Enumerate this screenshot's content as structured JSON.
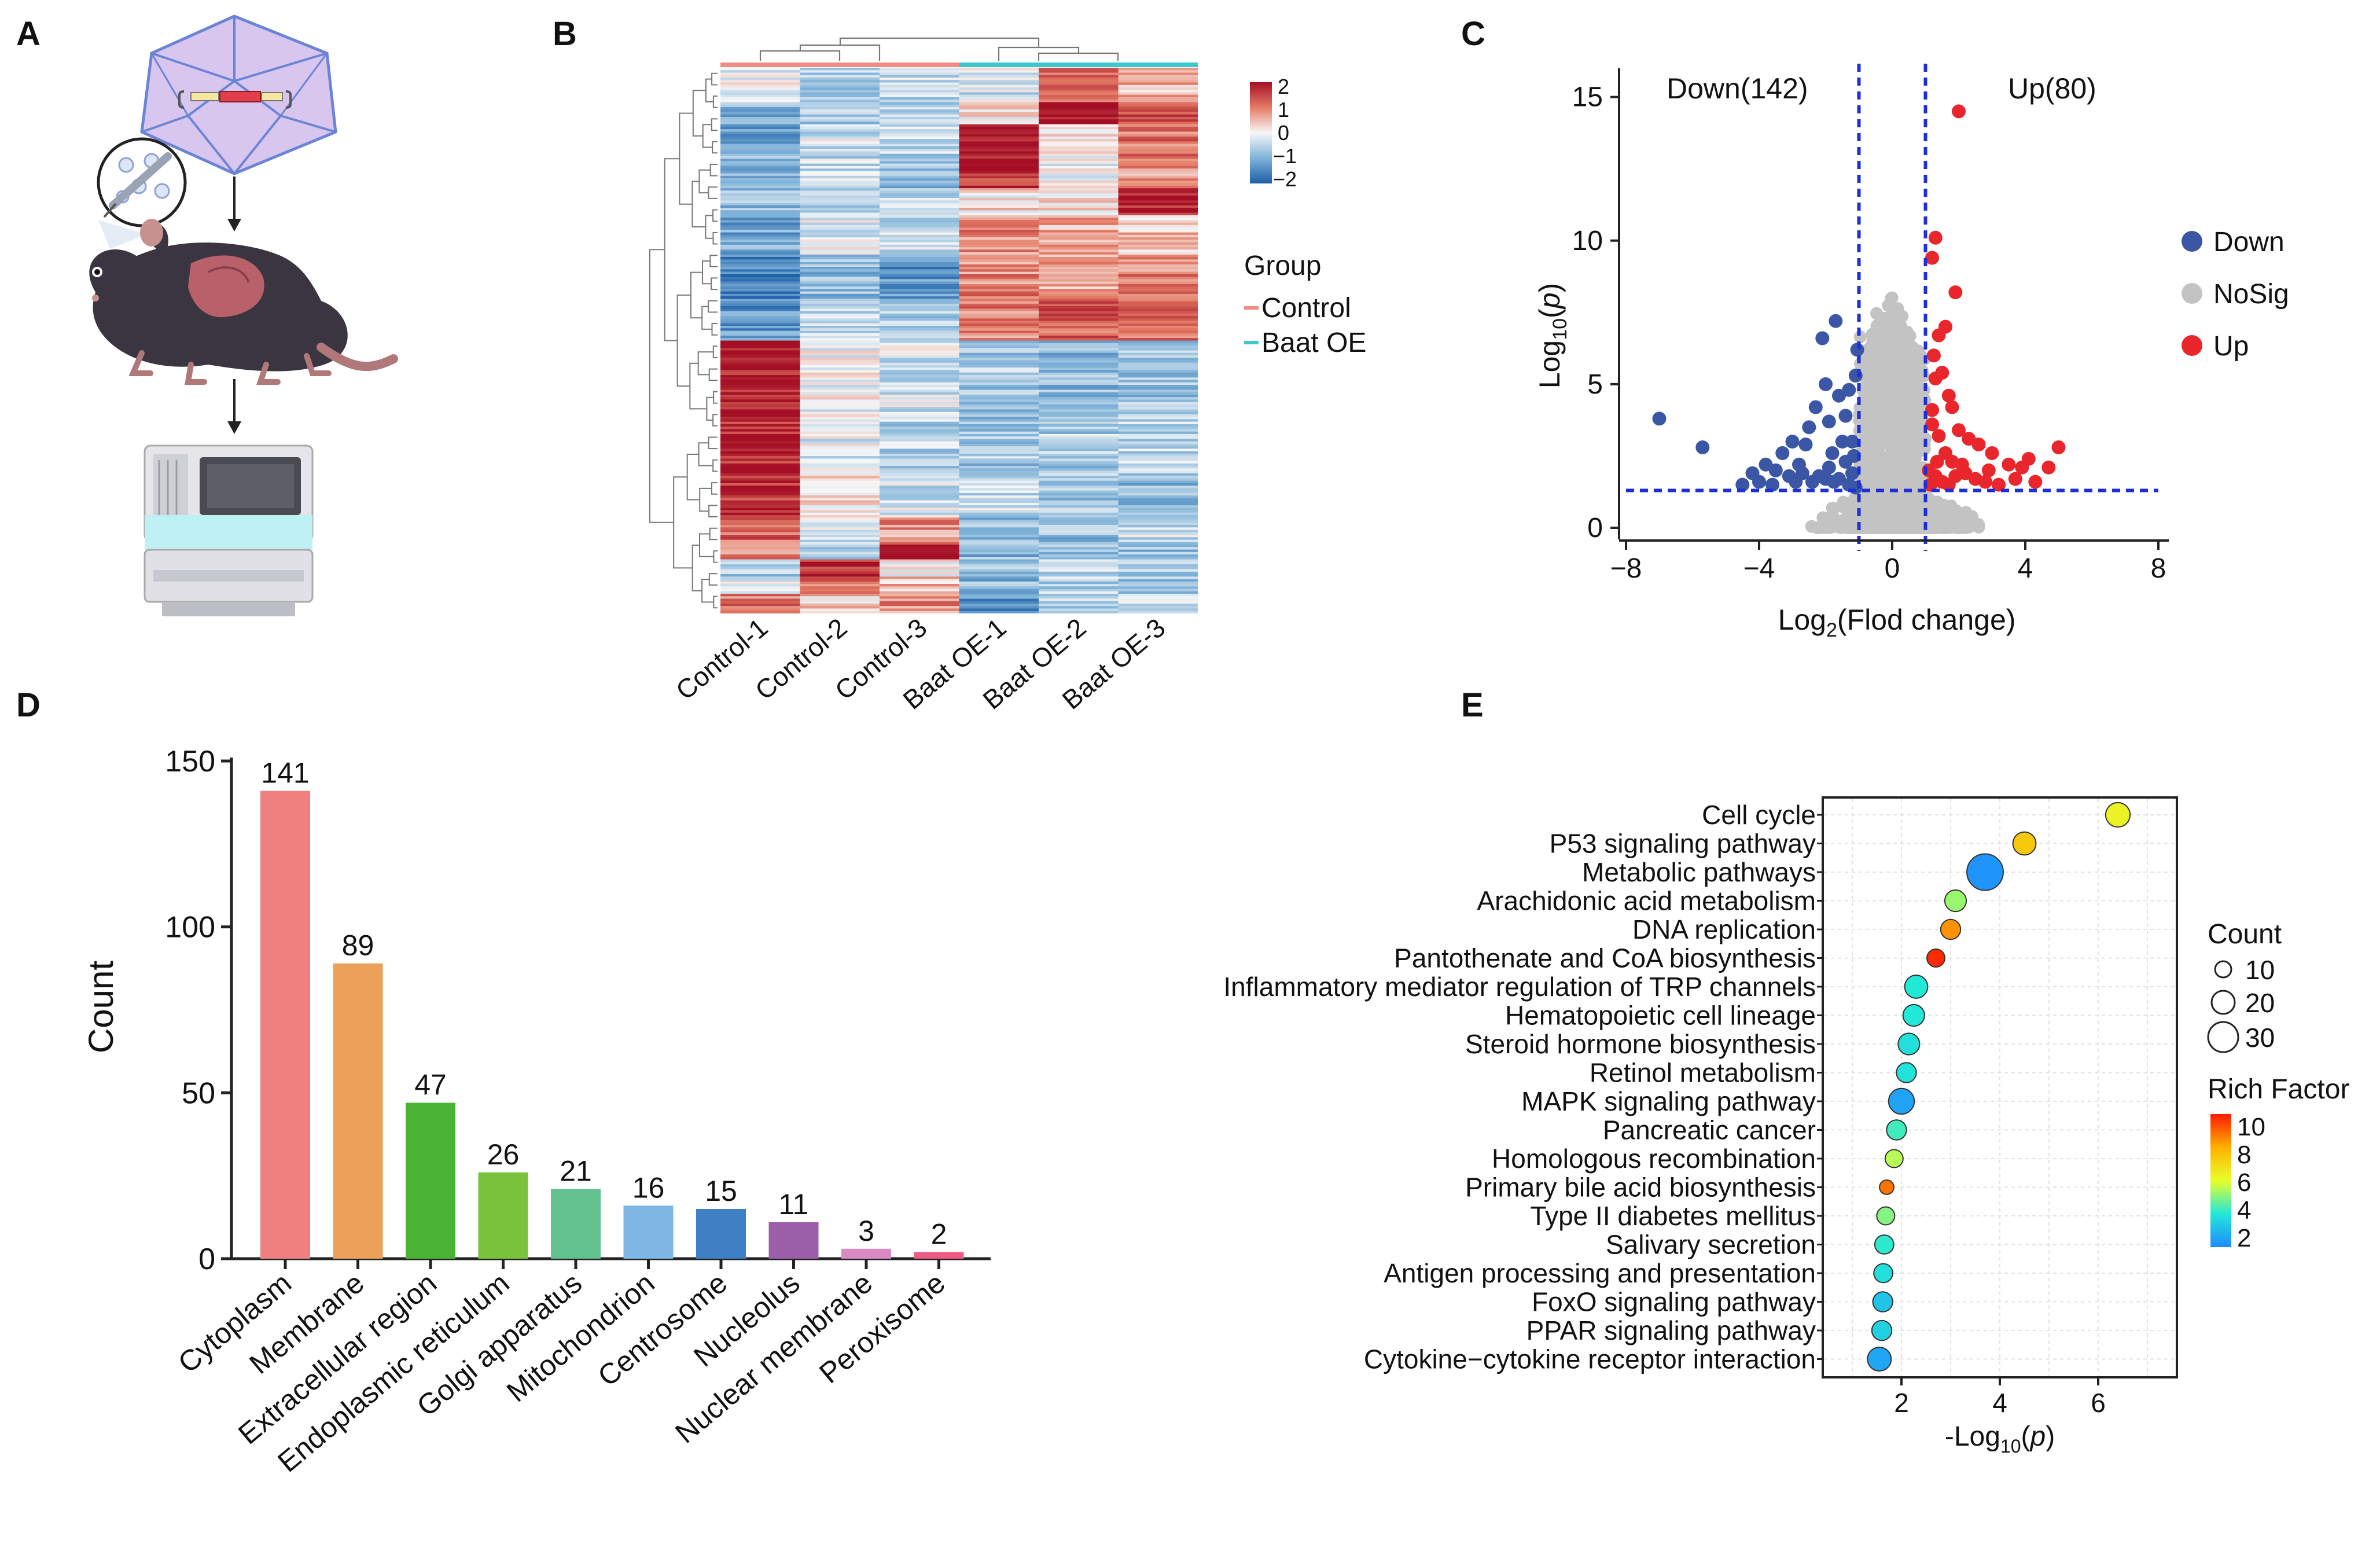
{
  "panels": {
    "A": {
      "letter": "A"
    },
    "B": {
      "letter": "B"
    },
    "C": {
      "letter": "C"
    },
    "D": {
      "letter": "D"
    },
    "E": {
      "letter": "E"
    }
  },
  "heatmap": {
    "columns": [
      "Control-1",
      "Control-2",
      "Control-3",
      "Baat OE-1",
      "Baat OE-2",
      "Baat OE-3"
    ],
    "scale_labels": [
      "2",
      "1",
      "0",
      "−1",
      "−2"
    ],
    "legend_title": "Group",
    "groups": [
      {
        "name": "Control",
        "color": "#f08c84"
      },
      {
        "name": "Baat OE",
        "color": "#3cc8cc"
      }
    ]
  },
  "chart_data": [
    {
      "panel": "C",
      "type": "scatter",
      "title": "",
      "xlabel": "Log2(Flod change)",
      "ylabel": "Log10(p)",
      "xlim": [
        -8,
        8
      ],
      "ylim": [
        0,
        16
      ],
      "xticks": [
        "−8",
        "−4",
        "0",
        "4",
        "8"
      ],
      "yticks": [
        "0",
        "5",
        "10",
        "15"
      ],
      "annotations": [
        "Down(142)",
        "Up(80)"
      ],
      "thresholds": {
        "fold_change": [
          -1,
          1
        ],
        "p": 1.3
      },
      "legend": [
        {
          "label": "Down",
          "color": "#3a56a5"
        },
        {
          "label": "NoSig",
          "color": "#c3c3c3"
        },
        {
          "label": "Up",
          "color": "#e8262b"
        }
      ],
      "series": [
        {
          "name": "Down",
          "color": "#3a56a5",
          "points": [
            [
              -7.0,
              3.8
            ],
            [
              -5.7,
              2.8
            ],
            [
              -4.5,
              1.5
            ],
            [
              -4.2,
              1.9
            ],
            [
              -3.8,
              2.2
            ],
            [
              -3.5,
              2.0
            ],
            [
              -3.3,
              2.6
            ],
            [
              -3.0,
              3.0
            ],
            [
              -2.8,
              2.2
            ],
            [
              -2.6,
              2.9
            ],
            [
              -2.5,
              3.5
            ],
            [
              -2.4,
              1.6
            ],
            [
              -2.3,
              4.2
            ],
            [
              -2.1,
              6.6
            ],
            [
              -2.0,
              5.0
            ],
            [
              -1.9,
              3.7
            ],
            [
              -1.8,
              2.6
            ],
            [
              -1.7,
              7.2
            ],
            [
              -1.6,
              4.6
            ],
            [
              -1.5,
              3.0
            ],
            [
              -1.4,
              3.9
            ],
            [
              -1.3,
              4.8
            ],
            [
              -1.2,
              3.0
            ],
            [
              -1.1,
              5.3
            ],
            [
              -1.05,
              6.2
            ],
            [
              -1.6,
              1.7
            ],
            [
              -2.2,
              1.8
            ],
            [
              -2.9,
              1.6
            ],
            [
              -3.6,
              1.5
            ],
            [
              -1.2,
              1.9
            ],
            [
              -1.9,
              2.1
            ],
            [
              -1.4,
              2.3
            ],
            [
              -2.7,
              1.9
            ],
            [
              -3.1,
              1.8
            ],
            [
              -1.15,
              2.5
            ],
            [
              -1.3,
              1.5
            ],
            [
              -4.0,
              1.6
            ],
            [
              -2.0,
              1.7
            ],
            [
              -1.75,
              1.6
            ],
            [
              -1.1,
              1.4
            ]
          ]
        },
        {
          "name": "Up",
          "color": "#e8262b",
          "points": [
            [
              2.0,
              14.5
            ],
            [
              1.3,
              10.1
            ],
            [
              1.2,
              9.4
            ],
            [
              1.9,
              8.2
            ],
            [
              1.6,
              7.0
            ],
            [
              1.4,
              6.7
            ],
            [
              1.5,
              5.4
            ],
            [
              1.3,
              5.2
            ],
            [
              1.7,
              4.6
            ],
            [
              1.8,
              4.2
            ],
            [
              2.0,
              3.4
            ],
            [
              2.3,
              3.1
            ],
            [
              2.6,
              2.9
            ],
            [
              3.0,
              2.6
            ],
            [
              3.5,
              2.2
            ],
            [
              3.9,
              2.1
            ],
            [
              4.1,
              2.4
            ],
            [
              4.7,
              2.1
            ],
            [
              5.0,
              2.8
            ],
            [
              1.2,
              3.6
            ],
            [
              1.4,
              3.2
            ],
            [
              1.6,
              2.6
            ],
            [
              1.8,
              2.3
            ],
            [
              2.2,
              1.9
            ],
            [
              2.5,
              1.7
            ],
            [
              2.8,
              1.6
            ],
            [
              3.2,
              1.5
            ],
            [
              1.3,
              1.8
            ],
            [
              1.5,
              1.6
            ],
            [
              1.1,
              2.0
            ],
            [
              1.2,
              4.1
            ],
            [
              1.25,
              6.0
            ],
            [
              1.35,
              2.3
            ],
            [
              2.1,
              2.2
            ],
            [
              1.7,
              1.5
            ],
            [
              1.15,
              1.5
            ],
            [
              3.7,
              1.7
            ],
            [
              4.3,
              1.6
            ],
            [
              2.9,
              2.0
            ],
            [
              1.9,
              1.8
            ]
          ]
        }
      ]
    },
    {
      "panel": "D",
      "type": "bar",
      "title": "",
      "xlabel": "",
      "ylabel": "Count",
      "ylim": [
        0,
        150
      ],
      "yticks": [
        "0",
        "50",
        "100",
        "150"
      ],
      "categories": [
        "Cytoplasm",
        "Membrane",
        "Extracellular region",
        "Endoplasmic reticulum",
        "Golgi apparatus",
        "Mitochondrion",
        "Centrosome",
        "Nucleolus",
        "Nuclear membrane",
        "Peroxisome"
      ],
      "values": [
        141,
        89,
        47,
        26,
        21,
        16,
        15,
        11,
        3,
        2
      ],
      "colors": [
        "#f08080",
        "#eba15a",
        "#4ab335",
        "#79c23c",
        "#63c08f",
        "#7fb7e4",
        "#3f7fc4",
        "#9b5ea8",
        "#d98ac2",
        "#ee5b82"
      ]
    },
    {
      "panel": "E",
      "type": "scatter",
      "title": "",
      "xlabel": "-Log10(p)",
      "ylabel": "",
      "xlim": [
        0.4,
        7.6
      ],
      "xticks": [
        "2",
        "4",
        "6"
      ],
      "size_legend": {
        "title": "Count",
        "labels": [
          "10",
          "20",
          "30"
        ]
      },
      "color_legend": {
        "title": "Rich Factor",
        "labels": [
          "10",
          "8",
          "6",
          "4",
          "2"
        ]
      },
      "categories": [
        "Cell cycle",
        "P53 signaling pathway",
        "Metabolic pathways",
        "Arachidonic acid metabolism",
        "DNA replication",
        "Pantothenate and CoA biosynthesis",
        "Inflammatory mediator regulation of TRP channels",
        "Hematopoietic cell lineage",
        "Steroid hormone biosynthesis",
        "Retinol metabolism",
        "MAPK signaling pathway",
        "Pancreatic cancer",
        "Homologous recombination",
        "Primary bile acid biosynthesis",
        "Type II diabetes mellitus",
        "Salivary secretion",
        "Antigen processing and presentation",
        "FoxO signaling pathway",
        "PPAR signaling pathway",
        "Cytokine−cytokine receptor interaction"
      ],
      "x": [
        6.4,
        4.5,
        3.7,
        3.1,
        3.0,
        2.7,
        2.3,
        2.25,
        2.15,
        2.1,
        2.0,
        1.9,
        1.85,
        1.7,
        1.68,
        1.65,
        1.63,
        1.62,
        1.6,
        1.55
      ],
      "count": [
        14,
        12,
        38,
        10,
        8,
        6,
        12,
        10,
        10,
        8,
        16,
        8,
        6,
        3,
        6,
        7,
        7,
        8,
        8,
        13
      ],
      "rich_factor": [
        6.3,
        7.4,
        2.2,
        5.2,
        8.4,
        9.8,
        4.0,
        4.0,
        3.8,
        3.9,
        2.5,
        4.3,
        5.5,
        8.8,
        5.0,
        4.1,
        3.8,
        3.2,
        3.5,
        2.6
      ]
    }
  ]
}
